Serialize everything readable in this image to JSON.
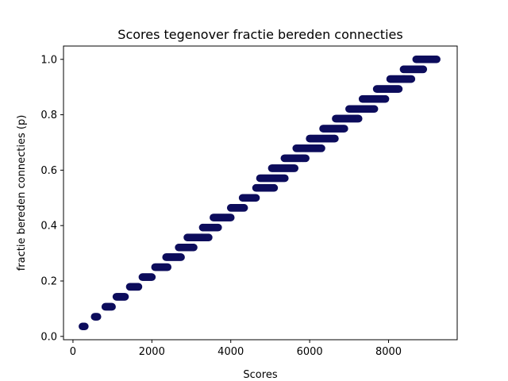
{
  "chart_data": {
    "type": "scatter",
    "title": "Scores tegenover fractie bereden connecties",
    "xlabel": "Scores",
    "ylabel": "fractie bereden connecties (p)",
    "xlim": [
      -240,
      9740
    ],
    "ylim": [
      -0.012,
      1.048
    ],
    "xticks": [
      0,
      2000,
      4000,
      6000,
      8000
    ],
    "xtick_labels": [
      "0",
      "2000",
      "4000",
      "6000",
      "8000"
    ],
    "yticks": [
      0.0,
      0.2,
      0.4,
      0.6,
      0.8,
      1.0
    ],
    "ytick_labels": [
      "0.0",
      "0.2",
      "0.4",
      "0.6",
      "0.8",
      "1.0"
    ],
    "grid": false,
    "legend": "none",
    "marker_color": "#0d0d5c",
    "clusters": [
      {
        "x": [
          240,
          300
        ],
        "y": 0.036
      },
      {
        "x": [
          550,
          620
        ],
        "y": 0.071
      },
      {
        "x": [
          820,
          990
        ],
        "y": 0.107
      },
      {
        "x": [
          1100,
          1320
        ],
        "y": 0.143
      },
      {
        "x": [
          1440,
          1660
        ],
        "y": 0.179
      },
      {
        "x": [
          1760,
          2000
        ],
        "y": 0.214
      },
      {
        "x": [
          2080,
          2400
        ],
        "y": 0.25
      },
      {
        "x": [
          2360,
          2740
        ],
        "y": 0.286
      },
      {
        "x": [
          2680,
          3060
        ],
        "y": 0.321
      },
      {
        "x": [
          2900,
          3440
        ],
        "y": 0.357
      },
      {
        "x": [
          3290,
          3680
        ],
        "y": 0.393
      },
      {
        "x": [
          3560,
          4000
        ],
        "y": 0.429
      },
      {
        "x": [
          4000,
          4340
        ],
        "y": 0.464
      },
      {
        "x": [
          4300,
          4640
        ],
        "y": 0.5
      },
      {
        "x": [
          4640,
          5100
        ],
        "y": 0.536
      },
      {
        "x": [
          4740,
          5370
        ],
        "y": 0.571
      },
      {
        "x": [
          5040,
          5620
        ],
        "y": 0.607
      },
      {
        "x": [
          5360,
          5900
        ],
        "y": 0.643
      },
      {
        "x": [
          5660,
          6300
        ],
        "y": 0.679
      },
      {
        "x": [
          6000,
          6640
        ],
        "y": 0.714
      },
      {
        "x": [
          6340,
          6880
        ],
        "y": 0.75
      },
      {
        "x": [
          6660,
          7240
        ],
        "y": 0.786
      },
      {
        "x": [
          7000,
          7640
        ],
        "y": 0.821
      },
      {
        "x": [
          7340,
          7920
        ],
        "y": 0.857
      },
      {
        "x": [
          7700,
          8260
        ],
        "y": 0.893
      },
      {
        "x": [
          8040,
          8580
        ],
        "y": 0.929
      },
      {
        "x": [
          8380,
          8880
        ],
        "y": 0.964
      },
      {
        "x": [
          8700,
          9220
        ],
        "y": 1.0
      }
    ]
  }
}
